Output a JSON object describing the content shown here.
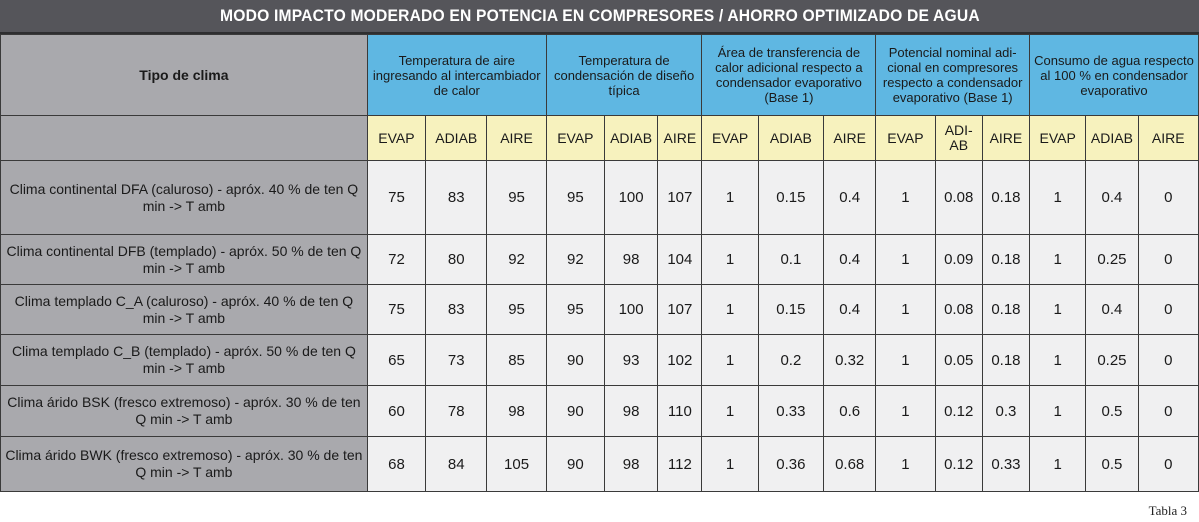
{
  "title": "MODO IMPACTO MODERADO EN POTENCIA EN COMPRESORES / AHORRO OPTIMIZADO DE AGUA",
  "row_header": "Tipo de clima",
  "groups": [
    "Temperatura de aire ingresando al intercambiador de calor",
    "Temperatura de condensación de diseño típica",
    "Área de transferencia de calor adicional respecto a condensador evaporativo (Base 1)",
    "Potencial nominal adi- cional en compresores respecto a condensador evaporativo (Base 1)",
    "Consumo de agua respecto al 100 % en condensador evaporativo"
  ],
  "subheaders": [
    [
      "EVAP",
      "ADIAB",
      "AIRE"
    ],
    [
      "EVAP",
      "ADIAB",
      "AIRE"
    ],
    [
      "EVAP",
      "ADIAB",
      "AIRE"
    ],
    [
      "EVAP",
      "ADI- AB",
      "AIRE"
    ],
    [
      "EVAP",
      "ADIAB",
      "AIRE"
    ]
  ],
  "rows": [
    {
      "label": "Clima continental DFA (caluroso) - apróx. 40 % de ten Q min -> T amb",
      "values": [
        "75",
        "83",
        "95",
        "95",
        "100",
        "107",
        "1",
        "0.15",
        "0.4",
        "1",
        "0.08",
        "0.18",
        "1",
        "0.4",
        "0"
      ]
    },
    {
      "label": "Clima continental DFB (templado) - apróx. 50 % de ten Q min -> T amb",
      "values": [
        "72",
        "80",
        "92",
        "92",
        "98",
        "104",
        "1",
        "0.1",
        "0.4",
        "1",
        "0.09",
        "0.18",
        "1",
        "0.25",
        "0"
      ]
    },
    {
      "label": "Clima templado C_A (caluroso) - apróx. 40 % de ten Q min -> T amb",
      "values": [
        "75",
        "83",
        "95",
        "95",
        "100",
        "107",
        "1",
        "0.15",
        "0.4",
        "1",
        "0.08",
        "0.18",
        "1",
        "0.4",
        "0"
      ]
    },
    {
      "label": "Clima templado C_B (templado) - apróx. 50 % de ten Q min -> T amb",
      "values": [
        "65",
        "73",
        "85",
        "90",
        "93",
        "102",
        "1",
        "0.2",
        "0.32",
        "1",
        "0.05",
        "0.18",
        "1",
        "0.25",
        "0"
      ]
    },
    {
      "label": "Clima árido BSK (fresco extremoso) - apróx. 30 % de ten Q min -> T amb",
      "values": [
        "60",
        "78",
        "98",
        "90",
        "98",
        "110",
        "1",
        "0.33",
        "0.6",
        "1",
        "0.12",
        "0.3",
        "1",
        "0.5",
        "0"
      ]
    },
    {
      "label": "Clima árido BWK (fresco extremoso) - apróx. 30 % de ten Q min -> T amb",
      "values": [
        "68",
        "84",
        "105",
        "90",
        "98",
        "112",
        "1",
        "0.36",
        "0.68",
        "1",
        "0.12",
        "0.33",
        "1",
        "0.5",
        "0"
      ]
    }
  ],
  "caption": "Tabla 3",
  "colors": {
    "title_bg": "#55555a",
    "group_header_bg": "#5fb7e2",
    "subheader_bg": "#f7f2be",
    "label_bg": "#a9a9ad",
    "cell_bg": "#f0f0f1"
  }
}
